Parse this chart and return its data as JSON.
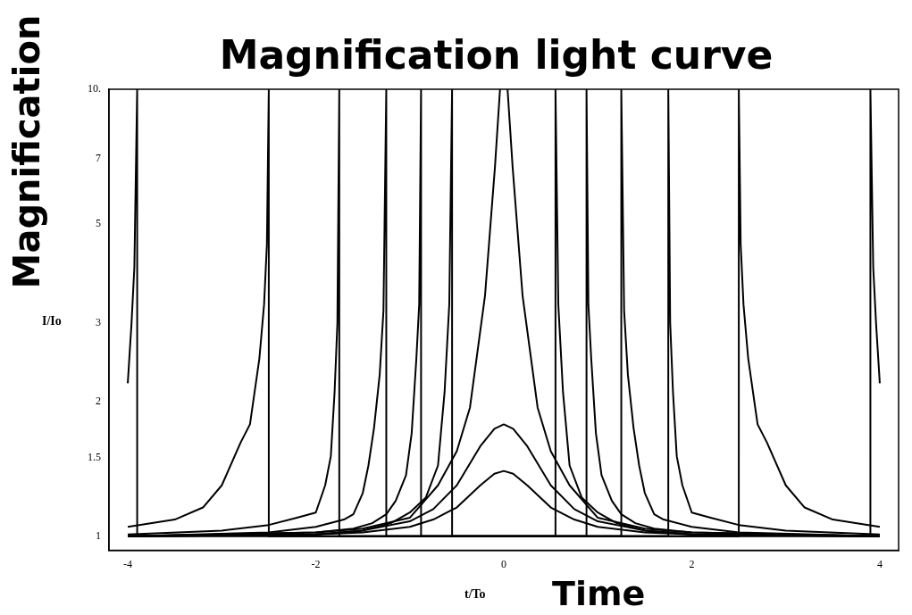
{
  "chart_data": {
    "type": "line",
    "title": "Magnification light curve",
    "xlabel": "Time",
    "ylabel": "Magnification",
    "annotations": [
      "I/Io",
      "t/To"
    ],
    "log": "y",
    "xlim": [
      -4.2,
      4.2
    ],
    "ylim": [
      0.93,
      10
    ],
    "xticks": [
      -4,
      -2,
      0,
      2,
      4
    ],
    "yticks": [
      1,
      1.5,
      2,
      3,
      5,
      7,
      {
        "value": 10,
        "label": "10."
      }
    ],
    "marker": "none",
    "series": [
      {
        "color": "#000000",
        "x": [
          -4,
          -3.96,
          -3.93,
          -3.9,
          -3.9,
          3.9,
          3.9,
          3.93,
          3.96,
          4
        ],
        "values": [
          2.2,
          3,
          4,
          10,
          1,
          1,
          10,
          4,
          3,
          2.2
        ]
      },
      {
        "color": "#000000",
        "x": [
          -4,
          -3.5,
          -3.2,
          -3,
          -2.8,
          -2.7,
          -2.6,
          -2.55,
          -2.52,
          -2.5,
          -2.5,
          2.5,
          2.5,
          2.52,
          2.55,
          2.6,
          2.7,
          2.8,
          3,
          3.2,
          3.5,
          4
        ],
        "values": [
          1.05,
          1.09,
          1.16,
          1.3,
          1.62,
          1.78,
          2.5,
          3.3,
          4.5,
          10,
          1,
          1,
          10,
          4.5,
          3.3,
          2.5,
          1.78,
          1.62,
          1.3,
          1.16,
          1.09,
          1.05
        ]
      },
      {
        "color": "#000000",
        "x": [
          -4,
          -3,
          -2.5,
          -2.2,
          -2,
          -1.9,
          -1.84,
          -1.8,
          -1.77,
          -1.75,
          -1.75,
          1.75,
          1.75,
          1.77,
          1.8,
          1.84,
          1.9,
          2,
          2.2,
          2.5,
          3,
          4
        ],
        "values": [
          1.01,
          1.03,
          1.06,
          1.1,
          1.13,
          1.3,
          1.51,
          2.1,
          3,
          10,
          1,
          1,
          10,
          3,
          2.1,
          1.51,
          1.3,
          1.13,
          1.1,
          1.06,
          1.03,
          1.01
        ]
      },
      {
        "color": "#000000",
        "x": [
          -4,
          -2.5,
          -2,
          -1.7,
          -1.6,
          -1.5,
          -1.44,
          -1.38,
          -1.32,
          -1.28,
          -1.25,
          -1.25,
          1.25,
          1.25,
          1.28,
          1.32,
          1.38,
          1.44,
          1.5,
          1.6,
          1.7,
          2,
          2.5,
          4
        ],
        "values": [
          1,
          1.02,
          1.05,
          1.09,
          1.12,
          1.25,
          1.44,
          1.75,
          2.3,
          3.2,
          10,
          1,
          1,
          10,
          3.2,
          2.3,
          1.75,
          1.44,
          1.25,
          1.12,
          1.09,
          1.05,
          1.02,
          1
        ]
      },
      {
        "color": "#000000",
        "x": [
          -4,
          -2,
          -1.6,
          -1.4,
          -1.25,
          -1.15,
          -1.04,
          -0.98,
          -0.93,
          -0.9,
          -0.88,
          -0.88,
          0.88,
          0.88,
          0.9,
          0.93,
          0.98,
          1.04,
          1.15,
          1.25,
          1.4,
          1.6,
          2,
          4
        ],
        "values": [
          1,
          1.02,
          1.04,
          1.07,
          1.12,
          1.2,
          1.37,
          1.7,
          2.5,
          3.3,
          10,
          1,
          1,
          10,
          3.3,
          2.5,
          1.7,
          1.37,
          1.2,
          1.12,
          1.07,
          1.04,
          1.02,
          1
        ]
      },
      {
        "color": "#000000",
        "x": [
          -4,
          -2,
          -1.5,
          -1.2,
          -1,
          -0.83,
          -0.7,
          -0.63,
          -0.58,
          -0.55,
          -0.55,
          0.55,
          0.55,
          0.58,
          0.63,
          0.7,
          0.83,
          1,
          1.2,
          1.5,
          2,
          4
        ],
        "values": [
          1,
          1.01,
          1.03,
          1.07,
          1.13,
          1.22,
          1.44,
          2.1,
          3.3,
          10,
          1,
          1,
          10,
          3.3,
          2.1,
          1.44,
          1.22,
          1.13,
          1.07,
          1.03,
          1.01,
          1
        ]
      },
      {
        "color": "#000000",
        "x": [
          -4,
          -2,
          -1.5,
          -1,
          -0.7,
          -0.5,
          -0.36,
          -0.2,
          -0.094,
          -0.04,
          0,
          0.04,
          0.094,
          0.2,
          0.36,
          0.5,
          0.7,
          1,
          1.5,
          2,
          4
        ],
        "values": [
          1,
          1.02,
          1.04,
          1.1,
          1.3,
          1.55,
          1.94,
          3.45,
          6.7,
          10,
          null,
          10,
          6.7,
          3.45,
          1.94,
          1.55,
          1.3,
          1.1,
          1.04,
          1.02,
          1
        ]
      },
      {
        "color": "#000000",
        "x": [
          -4,
          -2,
          -1.5,
          -1,
          -0.75,
          -0.5,
          -0.25,
          -0.1,
          0,
          0.1,
          0.25,
          0.5,
          0.75,
          1,
          1.5,
          2,
          4
        ],
        "values": [
          1,
          1.01,
          1.03,
          1.08,
          1.15,
          1.3,
          1.59,
          1.74,
          1.78,
          1.74,
          1.59,
          1.3,
          1.15,
          1.08,
          1.03,
          1.01,
          1
        ]
      },
      {
        "color": "#000000",
        "x": [
          -4,
          -2,
          -1.5,
          -1,
          -0.75,
          -0.5,
          -0.25,
          -0.1,
          0,
          0.1,
          0.25,
          0.5,
          0.75,
          1,
          1.5,
          2,
          4
        ],
        "values": [
          1,
          1.01,
          1.02,
          1.05,
          1.09,
          1.16,
          1.3,
          1.38,
          1.4,
          1.38,
          1.3,
          1.16,
          1.09,
          1.05,
          1.02,
          1.01,
          1
        ]
      }
    ]
  }
}
